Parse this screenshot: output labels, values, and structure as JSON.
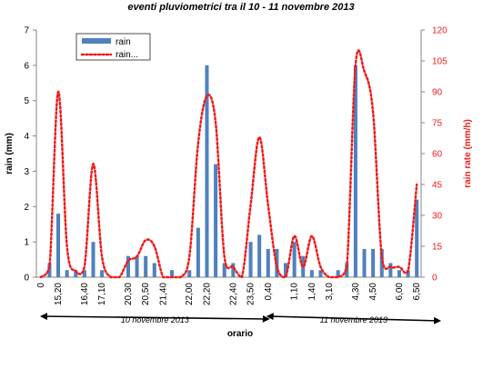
{
  "chart_data": {
    "type": "bar",
    "title": "eventi pluviometrici  tra il 10  - 11 novembre  2013",
    "xlabel": "orario",
    "ylabel": "rain (mm)",
    "y2label": "rain rate (mm/h)",
    "ylim": [
      0,
      7
    ],
    "y2lim": [
      0,
      120
    ],
    "yticks": [
      "0",
      "1",
      "2",
      "3",
      "4",
      "5",
      "6",
      "7"
    ],
    "y2ticks": [
      "0",
      "15",
      "30",
      "45",
      "60",
      "75",
      "90",
      "105",
      "120"
    ],
    "x_tick_labels": [
      "0",
      "15,20",
      "16,40",
      "17,10",
      "20,30",
      "20,50",
      "21,40",
      "22,00",
      "22,20",
      "22,40",
      "23,50",
      "0,40",
      "1,10",
      "1,40",
      "3,10",
      "4,30",
      "4,50",
      "6,00",
      "6,50"
    ],
    "legend": [
      "rain",
      "rain..."
    ],
    "legend_position": "top-left",
    "grid": false,
    "series": [
      {
        "name": "rain",
        "type": "bar",
        "axis": "left",
        "values": [
          0,
          0.4,
          1.8,
          0.2,
          0.2,
          0.2,
          1.0,
          0.2,
          0,
          0,
          0.6,
          0.6,
          0.6,
          0.4,
          0,
          0.2,
          0,
          0.2,
          1.4,
          6.0,
          3.2,
          0.4,
          0.4,
          0,
          1.0,
          1.2,
          0.8,
          0.8,
          0.4,
          1.0,
          0.6,
          0.2,
          0.2,
          0,
          0.2,
          0.4,
          6.0,
          0.8,
          0.8,
          0.8,
          0.4,
          0.2,
          0.2,
          2.2
        ],
        "color": "#4f81bd"
      },
      {
        "name": "rain...",
        "type": "line",
        "axis": "right",
        "style": "dotted",
        "values": [
          0,
          5,
          90,
          15,
          3,
          5,
          55,
          10,
          0,
          0,
          8,
          10,
          18,
          15,
          0,
          0,
          0,
          10,
          65,
          88,
          75,
          10,
          5,
          0,
          35,
          68,
          35,
          5,
          0,
          20,
          5,
          20,
          5,
          0,
          0,
          5,
          103,
          100,
          80,
          10,
          5,
          5,
          3,
          45
        ],
        "color": "#ee1c1c"
      }
    ],
    "annotations": [
      {
        "text": "10 novembre 2013",
        "from_category": 0,
        "to_category": 26
      },
      {
        "text": "11 novembre 2013",
        "from_category": 26,
        "to_category": 43
      }
    ]
  }
}
